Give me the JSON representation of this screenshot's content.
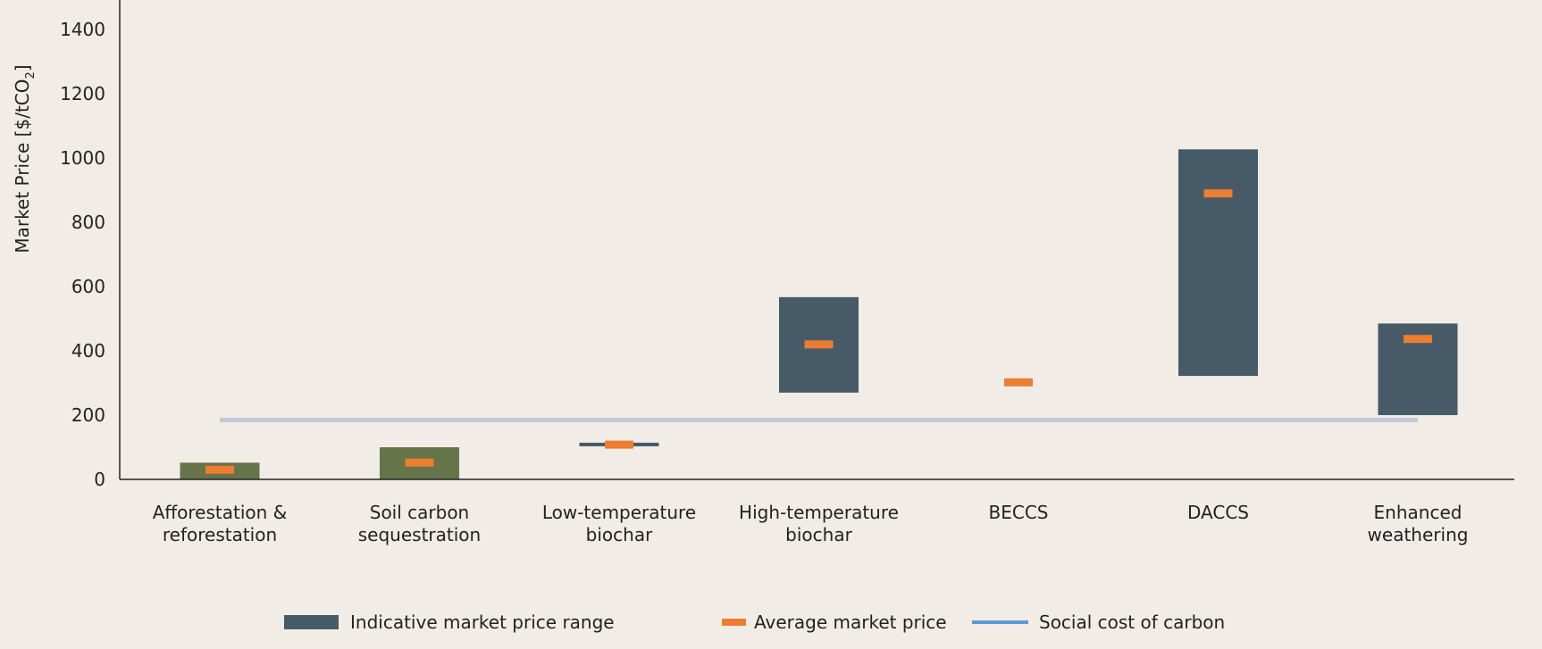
{
  "chart_data": {
    "type": "bar",
    "subtype": "floating-range",
    "ylabel": "Market Price [$/tCO",
    "ylabel_subscript": "2",
    "ylabel_close": "]",
    "ylim": [
      0,
      1400
    ],
    "yticks": [
      0,
      200,
      400,
      600,
      800,
      1000,
      1200,
      1400
    ],
    "categories": [
      [
        "Afforestation &",
        "reforestation"
      ],
      [
        "Soil carbon",
        "sequestration"
      ],
      [
        "Low-temperature",
        "biochar"
      ],
      [
        "High-temperature",
        "biochar"
      ],
      [
        "BECCS"
      ],
      [
        "DACCS"
      ],
      [
        "Enhanced",
        "weathering"
      ]
    ],
    "ranges": [
      {
        "low": 0,
        "high": 52,
        "color": "#66744a"
      },
      {
        "low": 0,
        "high": 100,
        "color": "#66744a"
      },
      {
        "low": 103,
        "high": 112,
        "color": "#475a67"
      },
      {
        "low": 270,
        "high": 567,
        "color": "#475a67"
      },
      null,
      {
        "low": 322,
        "high": 1027,
        "color": "#475a67"
      },
      {
        "low": 200,
        "high": 485,
        "color": "#475a67"
      }
    ],
    "average": [
      30,
      52,
      108,
      420,
      302,
      890,
      437
    ],
    "social_cost_of_carbon": 185,
    "grid": false,
    "legend_position": "bottom",
    "legend": [
      {
        "label": "Indicative market price range",
        "color": "#475a67",
        "kind": "bar"
      },
      {
        "label": "Average market price",
        "color": "#ed7d31",
        "kind": "dash"
      },
      {
        "label": "Social cost of carbon",
        "color": "#5b9bd5",
        "kind": "line"
      }
    ],
    "colors": {
      "average_marker": "#ed7d31",
      "scc_line": "#bfcad4",
      "axis": "#222222"
    }
  }
}
